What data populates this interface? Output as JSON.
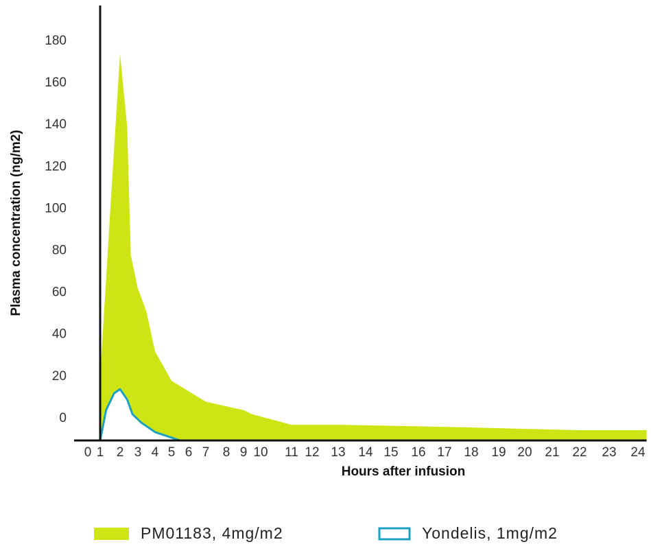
{
  "chart_data": {
    "type": "area",
    "x_label": "Hours after infusion",
    "y_label": "Plasma concentration (ng/m2)",
    "xlim": [
      0,
      24.3
    ],
    "xticks": [
      0,
      1,
      2,
      3,
      4,
      5,
      6,
      7,
      8,
      9,
      10,
      11,
      12,
      13,
      14,
      15,
      16,
      17,
      18,
      19,
      20,
      21,
      22,
      23,
      24
    ],
    "ylim": [
      -10.5,
      197
    ],
    "yticks": [
      0,
      20,
      40,
      60,
      80,
      100,
      120,
      140,
      160,
      180
    ],
    "series": [
      {
        "name": "PM01183, 4mg/m2",
        "color": "#cde512",
        "filled": true,
        "x": [
          1,
          1.5,
          2,
          2.4,
          2.6,
          3,
          3.5,
          4,
          5,
          6,
          7,
          9,
          9.5,
          11,
          13,
          17,
          22,
          24.3
        ],
        "values": [
          20,
          98,
          174,
          139,
          78,
          62,
          51,
          32,
          18,
          13,
          8,
          4,
          2,
          -3,
          -3,
          -4,
          -5.6,
          -5.6
        ]
      },
      {
        "name": "Yondelis, 1mg/m2",
        "color": "#1c9fc0",
        "filled": false,
        "x": [
          1,
          1.3,
          1.7,
          2,
          2.4,
          2.7,
          3.2,
          4,
          5.5
        ],
        "values": [
          -10.5,
          4,
          12,
          14,
          9,
          2,
          -2,
          -6.5,
          -10.5
        ]
      }
    ]
  }
}
